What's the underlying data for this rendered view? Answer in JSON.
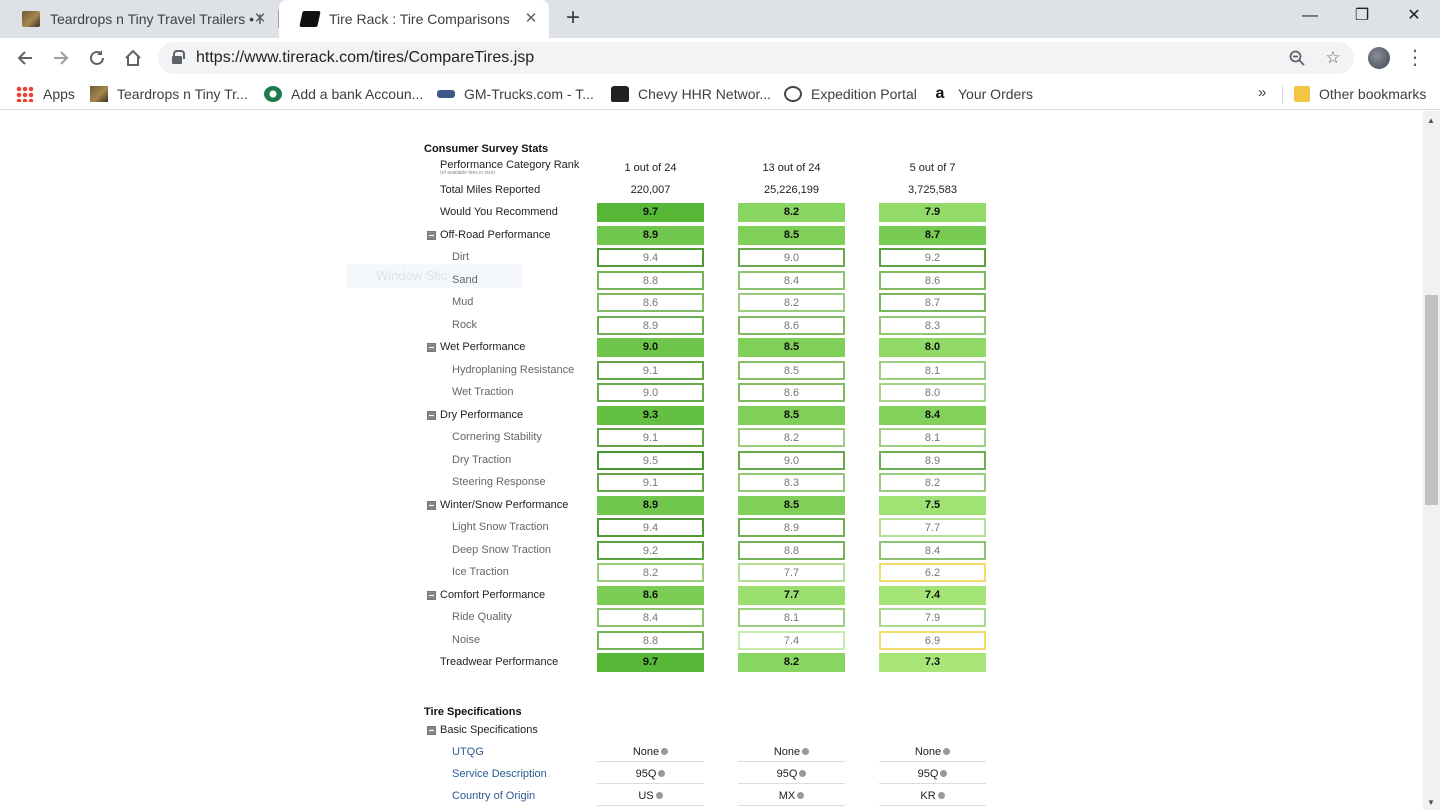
{
  "browser": {
    "tabs": [
      {
        "title": "Teardrops n Tiny Travel Trailers • I"
      },
      {
        "title": "Tire Rack : Tire Comparisons"
      }
    ],
    "new_tab_label": "+",
    "window": {
      "minimize": "—",
      "restore": "❐",
      "close": "✕"
    },
    "url": "https://www.tirerack.com/tires/CompareTires.jsp",
    "bookmarks": [
      {
        "label": "Apps"
      },
      {
        "label": "Teardrops n Tiny Tr..."
      },
      {
        "label": "Add a bank Accoun..."
      },
      {
        "label": "GM-Trucks.com - T..."
      },
      {
        "label": "Chevy HHR Networ..."
      },
      {
        "label": "Expedition Portal"
      },
      {
        "label": "Your Orders"
      }
    ],
    "bookmarks_overflow": "»",
    "other_bookmarks": "Other bookmarks"
  },
  "ghost_text": "Window Stic",
  "survey": {
    "title": "Consumer Survey Stats",
    "rank_label": "Performance Category Rank",
    "rank_note": "(of available tires in size)",
    "ranks": [
      "1 out of 24",
      "13 out of 24",
      "5 out of 7"
    ],
    "miles_label": "Total Miles Reported",
    "miles": [
      "220,007",
      "25,226,199",
      "3,725,583"
    ],
    "rows": [
      {
        "label": "Would You Recommend",
        "kind": "main",
        "toggle": false,
        "values": [
          "9.7",
          "8.2",
          "7.9"
        ]
      },
      {
        "label": "Off-Road Performance",
        "kind": "main",
        "toggle": true,
        "values": [
          "8.9",
          "8.5",
          "8.7"
        ]
      },
      {
        "label": "Dirt",
        "kind": "sub",
        "values": [
          "9.4",
          "9.0",
          "9.2"
        ]
      },
      {
        "label": "Sand",
        "kind": "sub",
        "values": [
          "8.8",
          "8.4",
          "8.6"
        ]
      },
      {
        "label": "Mud",
        "kind": "sub",
        "values": [
          "8.6",
          "8.2",
          "8.7"
        ]
      },
      {
        "label": "Rock",
        "kind": "sub",
        "values": [
          "8.9",
          "8.6",
          "8.3"
        ]
      },
      {
        "label": "Wet Performance",
        "kind": "main",
        "toggle": true,
        "values": [
          "9.0",
          "8.5",
          "8.0"
        ]
      },
      {
        "label": "Hydroplaning Resistance",
        "kind": "sub",
        "values": [
          "9.1",
          "8.5",
          "8.1"
        ]
      },
      {
        "label": "Wet Traction",
        "kind": "sub",
        "values": [
          "9.0",
          "8.6",
          "8.0"
        ]
      },
      {
        "label": "Dry Performance",
        "kind": "main",
        "toggle": true,
        "values": [
          "9.3",
          "8.5",
          "8.4"
        ]
      },
      {
        "label": "Cornering Stability",
        "kind": "sub",
        "values": [
          "9.1",
          "8.2",
          "8.1"
        ]
      },
      {
        "label": "Dry Traction",
        "kind": "sub",
        "values": [
          "9.5",
          "9.0",
          "8.9"
        ]
      },
      {
        "label": "Steering Response",
        "kind": "sub",
        "values": [
          "9.1",
          "8.3",
          "8.2"
        ]
      },
      {
        "label": "Winter/Snow Performance",
        "kind": "main",
        "toggle": true,
        "values": [
          "8.9",
          "8.5",
          "7.5"
        ]
      },
      {
        "label": "Light Snow Traction",
        "kind": "sub",
        "values": [
          "9.4",
          "8.9",
          "7.7"
        ]
      },
      {
        "label": "Deep Snow Traction",
        "kind": "sub",
        "values": [
          "9.2",
          "8.8",
          "8.4"
        ]
      },
      {
        "label": "Ice Traction",
        "kind": "sub",
        "values": [
          "8.2",
          "7.7",
          "6.2"
        ]
      },
      {
        "label": "Comfort Performance",
        "kind": "main",
        "toggle": true,
        "values": [
          "8.6",
          "7.7",
          "7.4"
        ]
      },
      {
        "label": "Ride Quality",
        "kind": "sub",
        "values": [
          "8.4",
          "8.1",
          "7.9"
        ]
      },
      {
        "label": "Noise",
        "kind": "sub",
        "values": [
          "8.8",
          "7.4",
          "6.9"
        ]
      },
      {
        "label": "Treadwear Performance",
        "kind": "main",
        "toggle": false,
        "values": [
          "9.7",
          "8.2",
          "7.3"
        ]
      }
    ]
  },
  "specs": {
    "title": "Tire Specifications",
    "group_label": "Basic Specifications",
    "rows": [
      {
        "label": "UTQG",
        "values": [
          "None",
          "None",
          "None"
        ]
      },
      {
        "label": "Service Description",
        "values": [
          "95Q",
          "95Q",
          "95Q"
        ]
      },
      {
        "label": "Country of Origin",
        "values": [
          "US",
          "MX",
          "KR"
        ]
      }
    ]
  }
}
